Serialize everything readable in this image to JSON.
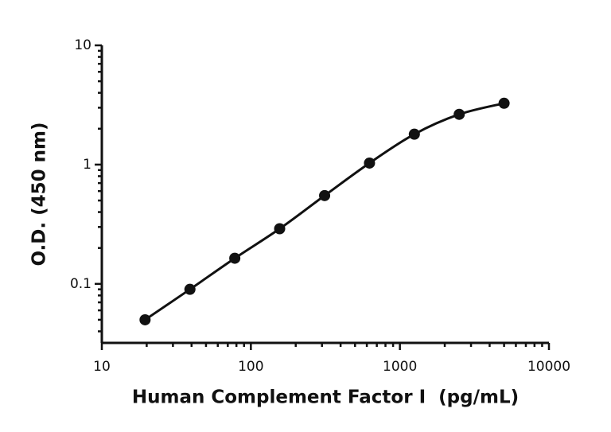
{
  "chart_data": {
    "type": "scatter",
    "x_label": "Human Complement Factor I  (pg/mL)",
    "y_label": "O.D. (450 nm)",
    "x_log": true,
    "y_log": true,
    "xlim": [
      10,
      10000
    ],
    "xticks": [
      10,
      100,
      1000,
      10000
    ],
    "ylim": [
      0.032,
      10
    ],
    "yticks": [
      0.1,
      1,
      10
    ],
    "fit_line": true,
    "series": [
      {
        "color": "#111111",
        "x": [
          19.5,
          39,
          78,
          156,
          312.5,
          625,
          1250,
          2500,
          5000
        ],
        "values": [
          0.05,
          0.09,
          0.164,
          0.29,
          0.55,
          1.03,
          1.8,
          2.64,
          3.27
        ]
      }
    ]
  }
}
